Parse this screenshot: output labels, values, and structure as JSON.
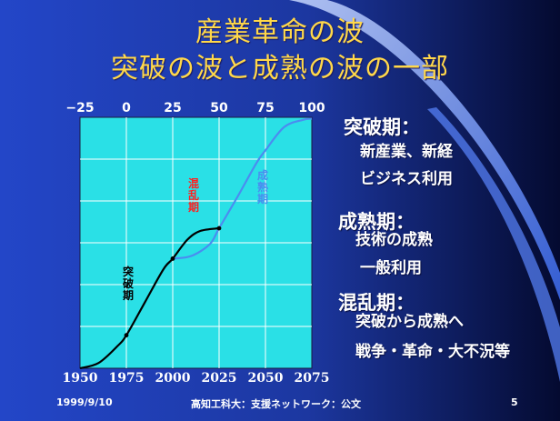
{
  "slide": {
    "title": "産業革命の波",
    "subtitle": "突破の波と成熟の波の一部",
    "colors": {
      "plot_bg": "#2ae0e6",
      "breakthrough": "#000000",
      "maturity": "#4a8cf0",
      "chaos_label": "#ff2020",
      "title": "#ffd84a"
    }
  },
  "chart_data": {
    "type": "line",
    "title": "",
    "top_axis": {
      "ticks": [
        "−25",
        "0",
        "25",
        "50",
        "75",
        "100"
      ],
      "range": [
        -25,
        100
      ]
    },
    "x_axis": {
      "ticks": [
        "1950",
        "1975",
        "2000",
        "2025",
        "2050",
        "2075"
      ],
      "range": [
        1950,
        2075
      ]
    },
    "grid": true,
    "series": [
      {
        "x": [
          1950,
          1960,
          1970,
          1975,
          1985,
          1995,
          2000,
          2008,
          2015,
          2025
        ],
        "y": [
          0,
          0.8,
          3.3,
          5,
          10,
          15,
          16.6,
          19.5,
          20.8,
          21.2
        ]
      },
      {
        "x": [
          2000,
          2010,
          2020,
          2025,
          2035,
          2045,
          2050,
          2060,
          2070,
          2075
        ],
        "y": [
          16.6,
          17,
          18.8,
          21.2,
          26,
          31,
          33,
          36.5,
          37.6,
          37.8
        ]
      }
    ],
    "labels": [
      {
        "text": "突破期",
        "color": "#000000"
      },
      {
        "text": "混乱期",
        "color": "#ff2020"
      },
      {
        "text": "成熟期",
        "color": "#4a8cf0"
      }
    ]
  },
  "notes": [
    {
      "heading": "突破期：",
      "lines": [
        "新産業、新経",
        "ビジネス利用"
      ]
    },
    {
      "heading": "成熟期：",
      "lines": [
        "技術の成熟",
        "一般利用"
      ]
    },
    {
      "heading": "混乱期：",
      "lines": [
        "突破から成熟へ",
        "戦争・革命・大不況等"
      ]
    }
  ],
  "footer": {
    "date": "1999/9/10",
    "org": "高知工科大：支援ネットワーク：公文",
    "page": "5"
  }
}
